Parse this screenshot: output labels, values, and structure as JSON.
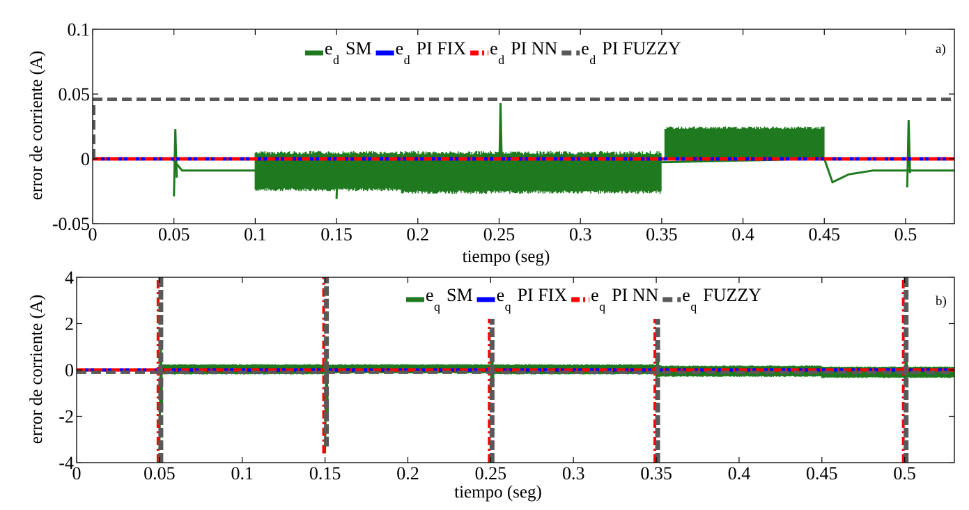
{
  "colors": {
    "sm": "#1f7a1f",
    "pi_fix": "#0000ff",
    "pi_nn": "#ff0000",
    "fuzzy": "#595959",
    "axis": "#000000"
  },
  "chart_data": [
    {
      "type": "line",
      "panel_label": "a)",
      "xlabel": "tiempo (seg)",
      "ylabel": "error de corriente  (A)",
      "xlim": [
        0,
        0.53
      ],
      "ylim": [
        -0.05,
        0.1
      ],
      "xticks": [
        0,
        0.05,
        0.1,
        0.15,
        0.2,
        0.25,
        0.3,
        0.35,
        0.4,
        0.45,
        0.5
      ],
      "xtick_labels": [
        "0",
        "0.05",
        "0.1",
        "0.15",
        "0.2",
        "0.25",
        "0.3",
        "0.35",
        "0.4",
        "0.45",
        "0.5"
      ],
      "yticks": [
        -0.05,
        0,
        0.05,
        0.1
      ],
      "ytick_labels": [
        "-0.05",
        "0",
        "0.05",
        "0.1"
      ],
      "legend_position": "top-center",
      "legend": [
        {
          "sym": "e",
          "sub": "d",
          "text": "SM",
          "color_key": "sm",
          "dash": "solid"
        },
        {
          "sym": "e",
          "sub": "d",
          "text": "PI FIX",
          "color_key": "pi_fix",
          "dash": "solid"
        },
        {
          "sym": "e",
          "sub": "d",
          "text": "PI NN",
          "color_key": "pi_nn",
          "dash": "dashdot"
        },
        {
          "sym": "e",
          "sub": "d",
          "text": "PI FUZZY",
          "color_key": "fuzzy",
          "dash": "dashed"
        }
      ],
      "series": [
        {
          "key": "sm",
          "description_values": {
            "bands": [
              {
                "x0": 0.1,
                "x1": 0.19,
                "lo": -0.025,
                "hi": 0.006
              },
              {
                "x0": 0.19,
                "x1": 0.35,
                "lo": -0.027,
                "hi": 0.006
              },
              {
                "x0": 0.352,
                "x1": 0.45,
                "lo": -0.001,
                "hi": 0.025
              }
            ],
            "steady": [
              [
                0.0,
                0.0
              ],
              [
                0.049,
                0.0
              ],
              [
                0.055,
                -0.009
              ],
              [
                0.1,
                -0.009
              ],
              [
                0.45,
                0.0
              ],
              [
                0.455,
                -0.018
              ],
              [
                0.465,
                -0.012
              ],
              [
                0.48,
                -0.009
              ],
              [
                0.5,
                -0.009
              ],
              [
                0.51,
                -0.009
              ],
              [
                0.53,
                -0.009
              ]
            ],
            "spikes": [
              {
                "x": 0.05,
                "lo": -0.029,
                "hi": 0.023
              },
              {
                "x": 0.15,
                "lo": -0.031,
                "hi": 0.0
              },
              {
                "x": 0.25,
                "lo": -0.02,
                "hi": 0.043
              },
              {
                "x": 0.501,
                "lo": -0.022,
                "hi": 0.03
              }
            ]
          }
        },
        {
          "key": "pi_fix",
          "x": [
            0,
            0.53
          ],
          "y": [
            0,
            0
          ]
        },
        {
          "key": "pi_nn",
          "x": [
            0,
            0.53
          ],
          "y": [
            0,
            0
          ]
        },
        {
          "key": "fuzzy",
          "x": [
            0,
            0.53
          ],
          "y": [
            0.046,
            0.046
          ]
        }
      ]
    },
    {
      "type": "line",
      "panel_label": "b)",
      "xlabel": "tiempo (seg)",
      "ylabel": "error de corriente  (A)",
      "xlim": [
        0,
        0.53
      ],
      "ylim": [
        -4,
        4
      ],
      "xticks": [
        0,
        0.05,
        0.1,
        0.15,
        0.2,
        0.25,
        0.3,
        0.35,
        0.4,
        0.45,
        0.5
      ],
      "xtick_labels": [
        "0",
        "0.05",
        "0.1",
        "0.15",
        "0.2",
        "0.25",
        "0.3",
        "0.35",
        "0.4",
        "0.45",
        "0.5"
      ],
      "yticks": [
        -4,
        -2,
        0,
        2,
        4
      ],
      "ytick_labels": [
        "-4",
        "-2",
        "0",
        "2",
        "4"
      ],
      "legend_position": "top-center",
      "legend": [
        {
          "sym": "e",
          "sub": "q",
          "text": "SM",
          "color_key": "sm",
          "dash": "solid"
        },
        {
          "sym": "e",
          "sub": "q",
          "text": "PI FIX",
          "color_key": "pi_fix",
          "dash": "solid"
        },
        {
          "sym": "e",
          "sub": "q",
          "text": "PI NN",
          "color_key": "pi_nn",
          "dash": "dashdot"
        },
        {
          "sym": "e",
          "sub": "q",
          "text": "FUZZY",
          "color_key": "fuzzy",
          "dash": "dashed"
        }
      ],
      "series": [
        {
          "key": "sm",
          "description_values": {
            "bands": [
              {
                "x0": 0.05,
                "x1": 0.15,
                "lo": -0.2,
                "hi": 0.25
              },
              {
                "x0": 0.15,
                "x1": 0.25,
                "lo": -0.15,
                "hi": 0.25
              },
              {
                "x0": 0.25,
                "x1": 0.35,
                "lo": -0.2,
                "hi": 0.25
              },
              {
                "x0": 0.35,
                "x1": 0.45,
                "lo": -0.3,
                "hi": 0.2
              },
              {
                "x0": 0.45,
                "x1": 0.53,
                "lo": -0.35,
                "hi": 0.15
              }
            ],
            "spikes": [
              {
                "x": 0.05,
                "lo": -3.2,
                "hi": 1.0
              },
              {
                "x": 0.15,
                "lo": -3.6,
                "hi": 0.6
              },
              {
                "x": 0.25,
                "lo": -1.0,
                "hi": 0.7
              },
              {
                "x": 0.35,
                "lo": -0.6,
                "hi": 0.6
              },
              {
                "x": 0.5,
                "lo": -0.6,
                "hi": 0.7
              }
            ]
          }
        },
        {
          "key": "pi_fix",
          "x": [
            0,
            0.53
          ],
          "y": [
            0,
            0
          ]
        },
        {
          "key": "pi_nn",
          "x": [
            0,
            0.53
          ],
          "y": [
            0,
            0
          ],
          "spikes": [
            {
              "x": 0.05,
              "lo": -4,
              "hi": 4
            },
            {
              "x": 0.15,
              "lo": -3.6,
              "hi": 4
            },
            {
              "x": 0.25,
              "lo": -4,
              "hi": 2.2
            },
            {
              "x": 0.35,
              "lo": -4,
              "hi": 2.2
            },
            {
              "x": 0.5,
              "lo": -4,
              "hi": 4
            }
          ]
        },
        {
          "key": "fuzzy",
          "x": [
            0,
            0.53
          ],
          "y": [
            -0.1,
            -0.1
          ],
          "spikes": [
            {
              "x": 0.05,
              "lo": -4,
              "hi": 4
            },
            {
              "x": 0.15,
              "lo": -3.3,
              "hi": 4
            },
            {
              "x": 0.25,
              "lo": -4,
              "hi": 2.2
            },
            {
              "x": 0.35,
              "lo": -4,
              "hi": 2.2
            },
            {
              "x": 0.5,
              "lo": -4,
              "hi": 4
            }
          ]
        }
      ]
    }
  ]
}
